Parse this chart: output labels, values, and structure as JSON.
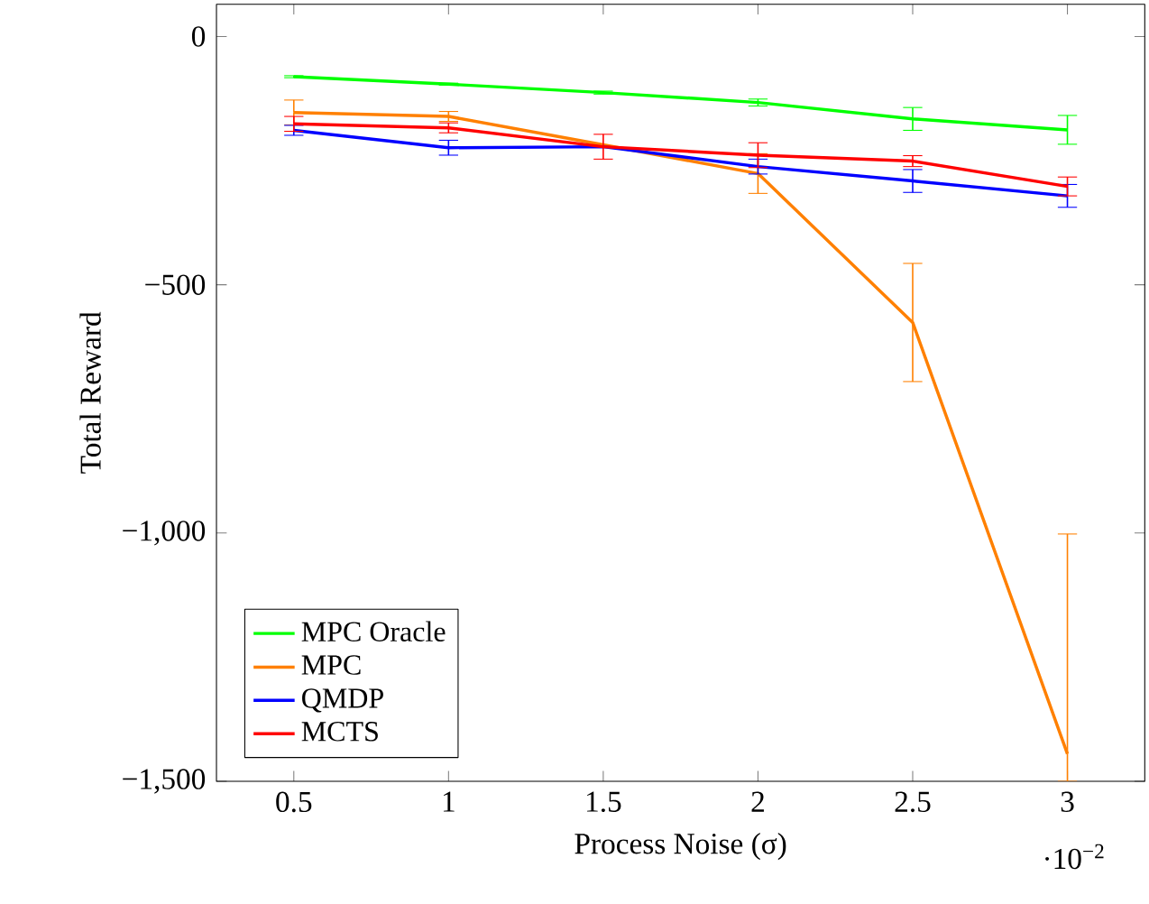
{
  "chart_data": {
    "type": "line",
    "xlabel": "Process Noise (σ)",
    "ylabel": "Total Reward",
    "x": [
      0.5,
      1,
      1.5,
      2,
      2.5,
      3
    ],
    "xlim": [
      0.25,
      3.25
    ],
    "xticks": [
      0.5,
      1,
      1.5,
      2,
      2.5,
      3
    ],
    "ylim": [
      -1500,
      65
    ],
    "yticks": [
      {
        "value": -1500,
        "label": "−1,500"
      },
      {
        "value": -1000,
        "label": "−1,000"
      },
      {
        "value": -500,
        "label": "−500"
      },
      0
    ],
    "annotations": [
      "·10$^{−2}$"
    ],
    "legend": "bottom left",
    "marker": "none",
    "line_style": "solid",
    "grid": false,
    "series": [
      {
        "name": "MPC Oracle",
        "color": "#00ff00",
        "values": [
          -81,
          -96,
          -113,
          -133,
          -166,
          -188
        ],
        "errors": [
          2,
          2,
          3,
          7,
          23,
          29
        ]
      },
      {
        "name": "MPC",
        "color": "#ff8000",
        "values": [
          -153,
          -161,
          -218,
          -276,
          -576,
          -1445
        ],
        "errors": [
          25,
          10,
          null,
          40,
          119,
          [
            -1500,
            -1002
          ]
        ]
      },
      {
        "name": "QMDP",
        "color": "#0000ff",
        "values": [
          -189,
          -224,
          -222,
          -262,
          -291,
          -321
        ],
        "errors": [
          10,
          15,
          null,
          15,
          23,
          23
        ]
      },
      {
        "name": "MCTS",
        "color": "#ff0000",
        "values": [
          -176,
          -184,
          -222,
          -239,
          -251,
          -302
        ],
        "errors": [
          15,
          10,
          25,
          25,
          11,
          19
        ]
      }
    ]
  }
}
